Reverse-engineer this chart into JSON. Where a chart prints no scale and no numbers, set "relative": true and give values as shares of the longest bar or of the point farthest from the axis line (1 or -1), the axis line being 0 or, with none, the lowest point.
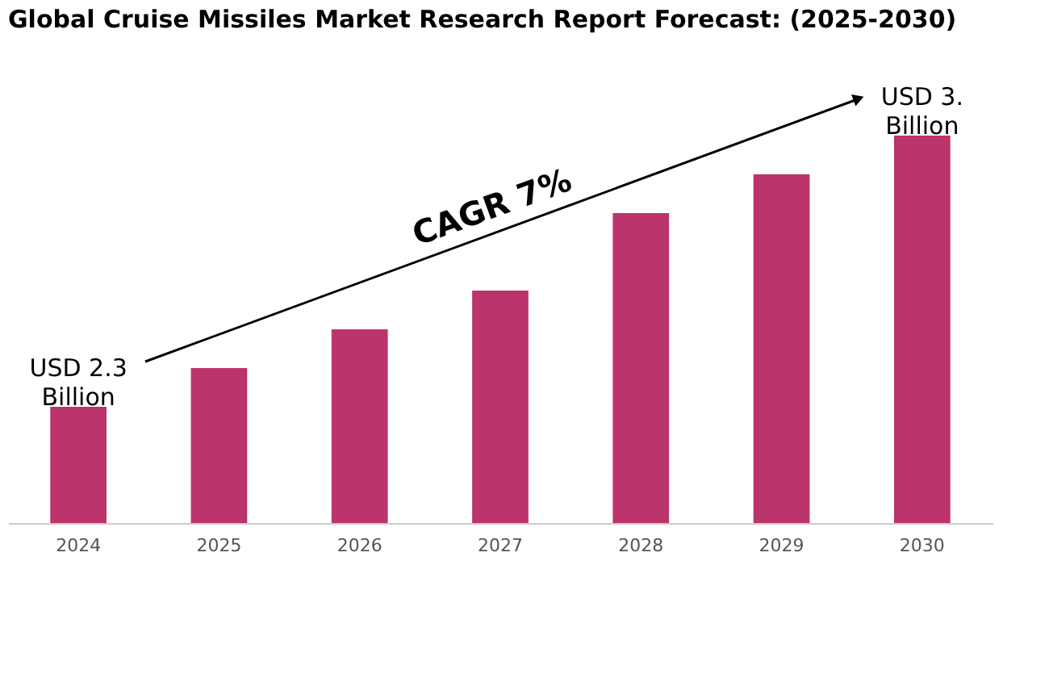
{
  "chart_data": {
    "type": "bar",
    "title": "Global Cruise Missiles Market Research Report Forecast: (2025-2030)",
    "categories": [
      "2024",
      "2025",
      "2026",
      "2027",
      "2028",
      "2029",
      "2030"
    ],
    "values": [
      0.3,
      0.4,
      0.5,
      0.6,
      0.8,
      0.9,
      1
    ],
    "color": "#bb346b",
    "relative": true,
    "grid": false,
    "annotations": [
      {
        "text": "USD 2.3 Billion",
        "x": "2024",
        "y": 0.3
      },
      {
        "text": "USD 3. Billion",
        "x": "2030",
        "y": 1
      },
      "CAGR 7%"
    ]
  }
}
